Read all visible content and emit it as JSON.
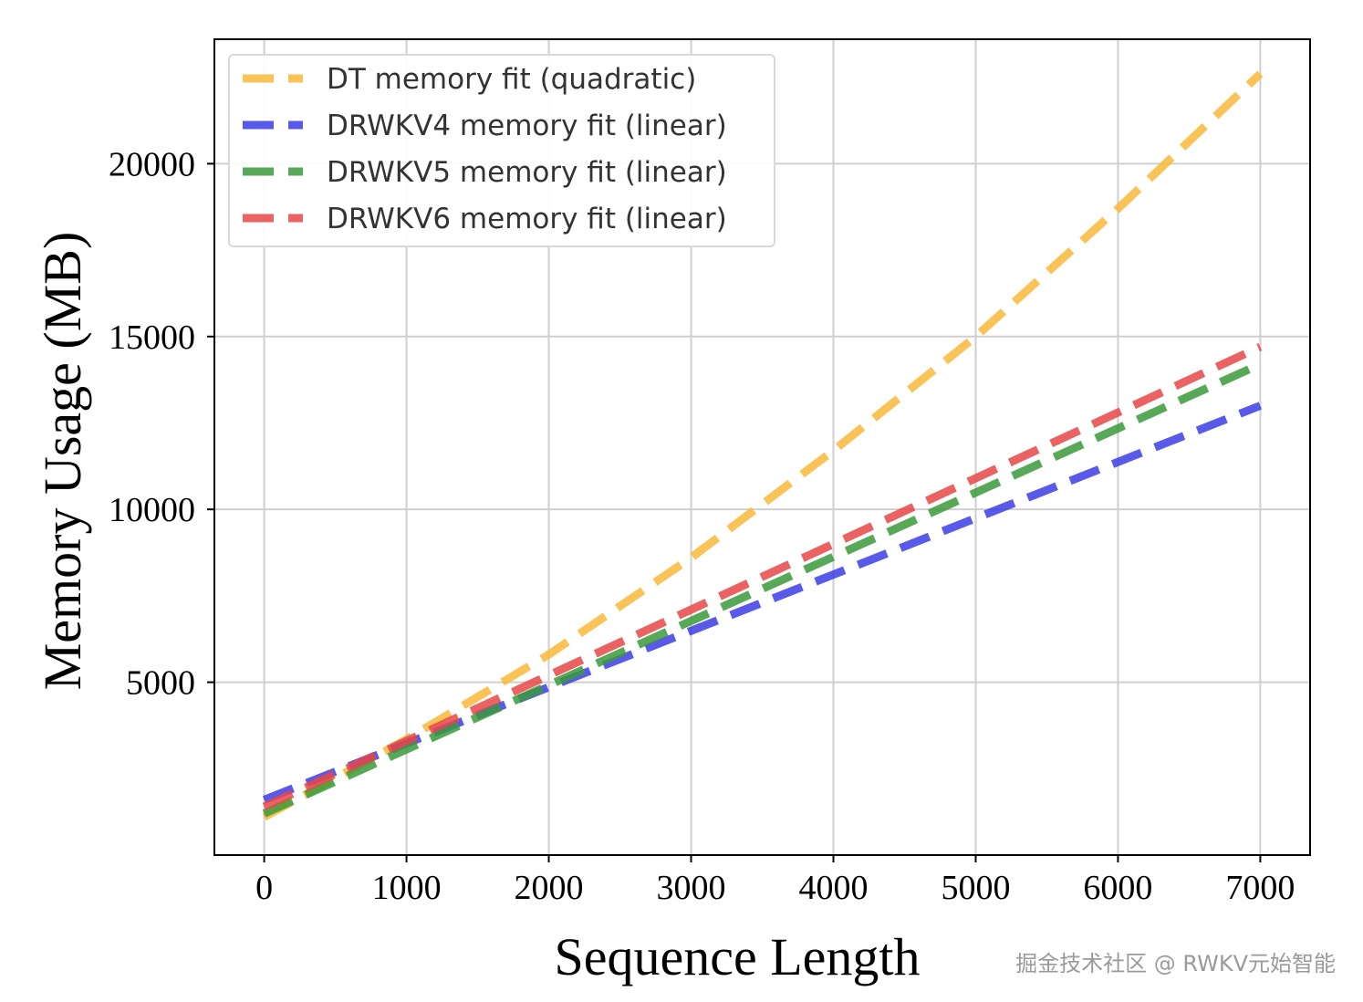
{
  "chart_data": {
    "type": "line",
    "xlabel": "Sequence Length",
    "ylabel": "Memory Usage (MB)",
    "xlim": [
      -350,
      7350
    ],
    "ylim": [
      0,
      23600
    ],
    "xticks": [
      0,
      1000,
      2000,
      3000,
      4000,
      5000,
      6000,
      7000
    ],
    "yticks": [
      5000,
      10000,
      15000,
      20000
    ],
    "grid": true,
    "legend_position": "top-left",
    "series": [
      {
        "name": "DT memory fit (quadratic)",
        "color": "#f9b93a",
        "style": "dashed",
        "x": [
          0,
          1000,
          2000,
          3000,
          4000,
          5000,
          6000,
          7000
        ],
        "y": [
          1100,
          3350,
          5800,
          8600,
          11700,
          15000,
          18700,
          22600
        ]
      },
      {
        "name": "DRWKV4 memory fit (linear)",
        "color": "#3c3ce6",
        "style": "dashed",
        "x": [
          0,
          7000
        ],
        "y": [
          1600,
          13000
        ]
      },
      {
        "name": "DRWKV5 memory fit (linear)",
        "color": "#3a9a3a",
        "style": "dashed",
        "x": [
          0,
          7000
        ],
        "y": [
          1200,
          14200
        ]
      },
      {
        "name": "DRWKV6 memory fit (linear)",
        "color": "#e64646",
        "style": "dashed",
        "x": [
          0,
          7000
        ],
        "y": [
          1400,
          14700
        ]
      }
    ]
  },
  "watermark": "掘金技术社区 @ RWKV元始智能"
}
